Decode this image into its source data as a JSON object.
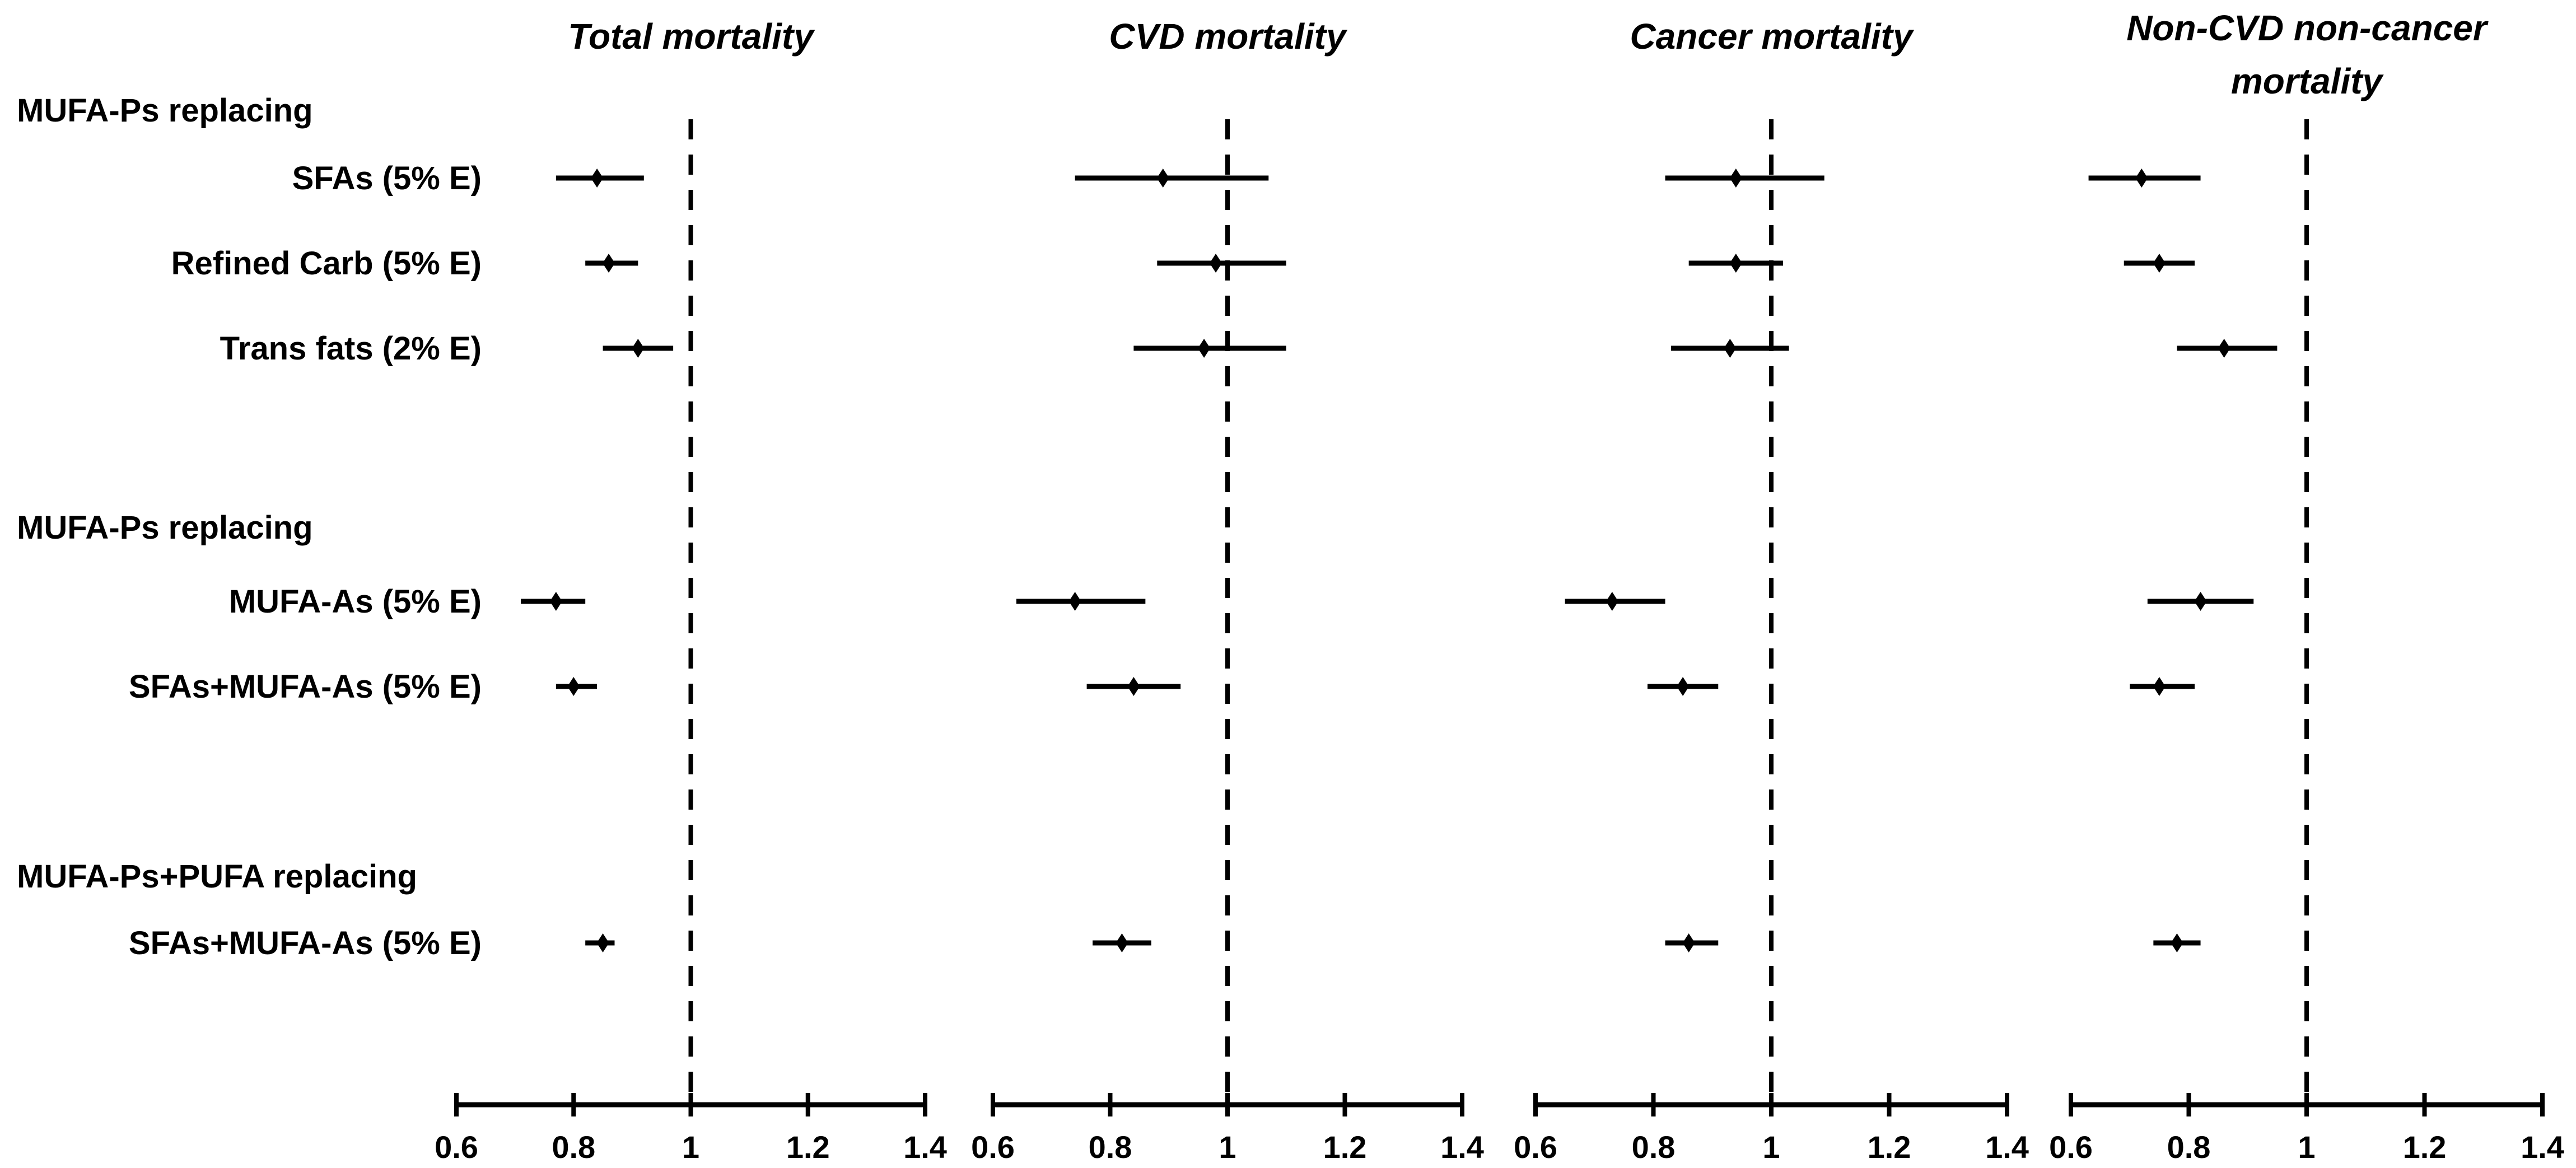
{
  "figure": {
    "background": "#ffffff",
    "ink": "#000000"
  },
  "left_column": {
    "groups": [
      {
        "header": "MUFA-Ps replacing",
        "items": [
          "SFAs (5% E)",
          "Refined Carb (5% E)",
          "Trans fats (2% E)"
        ]
      },
      {
        "header": "MUFA-Ps replacing",
        "items": [
          "MUFA-As (5% E)",
          "SFAs+MUFA-As (5% E)"
        ]
      },
      {
        "header": "MUFA-Ps+PUFA replacing",
        "items": [
          "SFAs+MUFA-As (5% E)"
        ]
      }
    ]
  },
  "chart_data": {
    "type": "forest",
    "marker": "diamond",
    "grid": false,
    "x_axis": {
      "range": [
        0.6,
        1.4
      ],
      "ticks": [
        0.6,
        0.8,
        1,
        1.2,
        1.4
      ],
      "tick_labels": [
        "0.6",
        "0.8",
        "1",
        "1.2",
        "1.4"
      ],
      "reference_line": 1.0,
      "reference_style": "dashed"
    },
    "row_labels": [
      "SFAs (5% E)",
      "Refined Carb (5% E)",
      "Trans fats (2% E)",
      "MUFA-As (5% E)",
      "SFAs+MUFA-As (5% E)",
      "SFAs+MUFA-As (5% E)"
    ],
    "row_group_headers": [
      "MUFA-Ps replacing",
      "MUFA-Ps replacing",
      "MUFA-Ps+PUFA replacing"
    ],
    "panels": [
      {
        "title": [
          "Total mortality"
        ],
        "estimates": [
          {
            "label": "SFAs (5% E)",
            "hr": 0.84,
            "ci": [
              0.77,
              0.92
            ]
          },
          {
            "label": "Refined Carb (5% E)",
            "hr": 0.86,
            "ci": [
              0.82,
              0.91
            ]
          },
          {
            "label": "Trans fats (2% E)",
            "hr": 0.91,
            "ci": [
              0.85,
              0.97
            ]
          },
          {
            "label": "MUFA-As (5% E)",
            "hr": 0.77,
            "ci": [
              0.71,
              0.82
            ]
          },
          {
            "label": "SFAs+MUFA-As (5% E)",
            "hr": 0.8,
            "ci": [
              0.77,
              0.84
            ]
          },
          {
            "label": "SFAs+MUFA-As (5% E)",
            "hr": 0.85,
            "ci": [
              0.82,
              0.87
            ]
          }
        ]
      },
      {
        "title": [
          "CVD mortality"
        ],
        "estimates": [
          {
            "label": "SFAs (5% E)",
            "hr": 0.89,
            "ci": [
              0.74,
              1.07
            ]
          },
          {
            "label": "Refined Carb (5% E)",
            "hr": 0.98,
            "ci": [
              0.88,
              1.1
            ]
          },
          {
            "label": "Trans fats (2% E)",
            "hr": 0.96,
            "ci": [
              0.84,
              1.1
            ]
          },
          {
            "label": "MUFA-As (5% E)",
            "hr": 0.74,
            "ci": [
              0.64,
              0.86
            ]
          },
          {
            "label": "SFAs+MUFA-As (5% E)",
            "hr": 0.84,
            "ci": [
              0.76,
              0.92
            ]
          },
          {
            "label": "SFAs+MUFA-As (5% E)",
            "hr": 0.82,
            "ci": [
              0.77,
              0.87
            ]
          }
        ]
      },
      {
        "title": [
          "Cancer mortality"
        ],
        "estimates": [
          {
            "label": "SFAs (5% E)",
            "hr": 0.94,
            "ci": [
              0.82,
              1.09
            ]
          },
          {
            "label": "Refined Carb (5% E)",
            "hr": 0.94,
            "ci": [
              0.86,
              1.02
            ]
          },
          {
            "label": "Trans fats (2% E)",
            "hr": 0.93,
            "ci": [
              0.83,
              1.03
            ]
          },
          {
            "label": "MUFA-As (5% E)",
            "hr": 0.73,
            "ci": [
              0.65,
              0.82
            ]
          },
          {
            "label": "SFAs+MUFA-As (5% E)",
            "hr": 0.85,
            "ci": [
              0.79,
              0.91
            ]
          },
          {
            "label": "SFAs+MUFA-As (5% E)",
            "hr": 0.86,
            "ci": [
              0.82,
              0.91
            ]
          }
        ]
      },
      {
        "title": [
          "Non-CVD non-cancer",
          "mortality"
        ],
        "estimates": [
          {
            "label": "SFAs (5% E)",
            "hr": 0.72,
            "ci": [
              0.63,
              0.82
            ]
          },
          {
            "label": "Refined Carb (5% E)",
            "hr": 0.75,
            "ci": [
              0.69,
              0.81
            ]
          },
          {
            "label": "Trans fats (2% E)",
            "hr": 0.86,
            "ci": [
              0.78,
              0.95
            ]
          },
          {
            "label": "MUFA-As (5% E)",
            "hr": 0.82,
            "ci": [
              0.73,
              0.91
            ]
          },
          {
            "label": "SFAs+MUFA-As (5% E)",
            "hr": 0.75,
            "ci": [
              0.7,
              0.81
            ]
          },
          {
            "label": "SFAs+MUFA-As (5% E)",
            "hr": 0.78,
            "ci": [
              0.74,
              0.82
            ]
          }
        ]
      }
    ]
  }
}
